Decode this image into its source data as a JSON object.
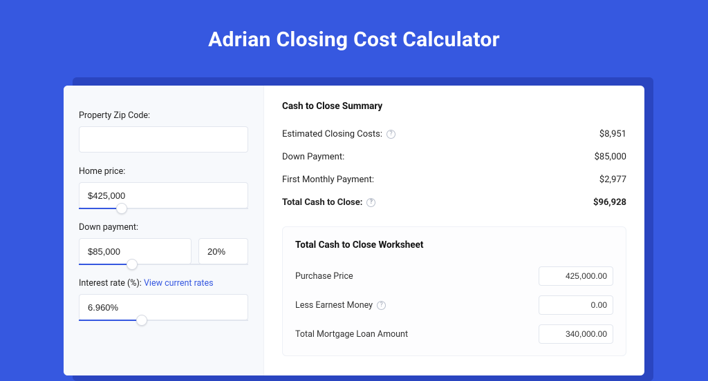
{
  "colors": {
    "page_bg": "#3658e0",
    "card_bg": "#ffffff",
    "left_panel_bg": "#f7f9fc",
    "shadow_bg": "#2a45c0",
    "border": "#e2e6ee",
    "accent": "#3658e0",
    "text": "#222222",
    "muted_icon": "#9aa2b2"
  },
  "title": "Adrian Closing Cost Calculator",
  "left": {
    "zip": {
      "label": "Property Zip Code:",
      "value": ""
    },
    "home_price": {
      "label": "Home price:",
      "value": "$425,000",
      "slider_pct": 22
    },
    "down_payment": {
      "label": "Down payment:",
      "value": "$85,000",
      "pct_value": "20%",
      "slider_pct": 28
    },
    "interest": {
      "label_prefix": "Interest rate (%):",
      "link_text": "View current rates",
      "value": "6.960%",
      "slider_pct": 34
    }
  },
  "summary": {
    "title": "Cash to Close Summary",
    "rows": [
      {
        "label": "Estimated Closing Costs:",
        "help": true,
        "value": "$8,951",
        "bold": false
      },
      {
        "label": "Down Payment:",
        "help": false,
        "value": "$85,000",
        "bold": false
      },
      {
        "label": "First Monthly Payment:",
        "help": false,
        "value": "$2,977",
        "bold": false
      },
      {
        "label": "Total Cash to Close:",
        "help": true,
        "value": "$96,928",
        "bold": true
      }
    ]
  },
  "worksheet": {
    "title": "Total Cash to Close Worksheet",
    "rows": [
      {
        "label": "Purchase Price",
        "help": false,
        "value": "425,000.00"
      },
      {
        "label": "Less Earnest Money",
        "help": true,
        "value": "0.00"
      },
      {
        "label": "Total Mortgage Loan Amount",
        "help": false,
        "value": "340,000.00"
      }
    ]
  }
}
